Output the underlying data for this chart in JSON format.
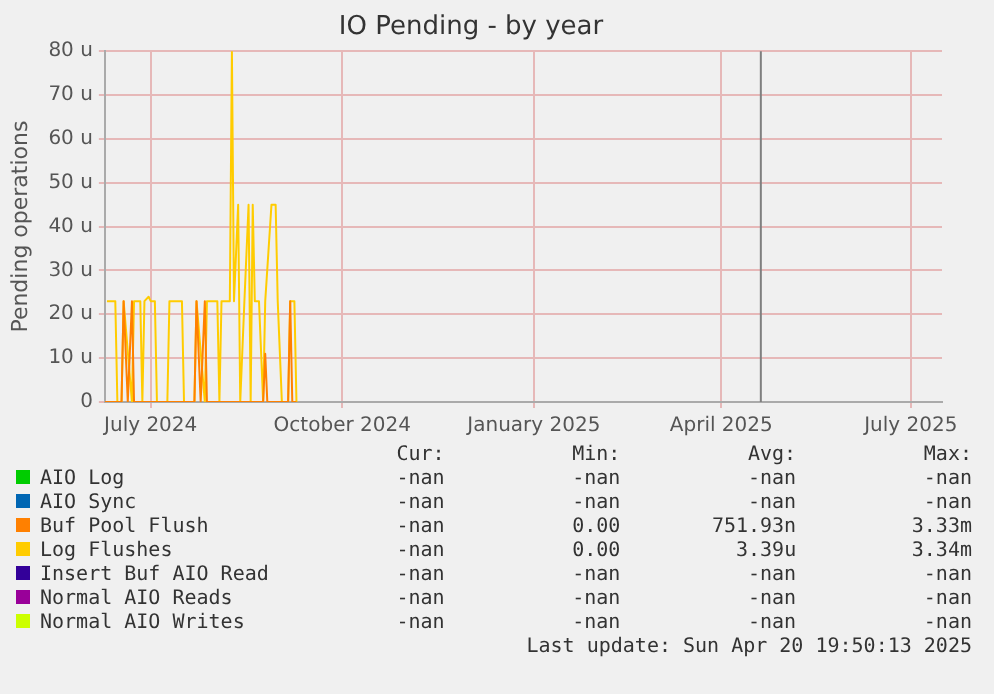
{
  "chart_data": {
    "type": "line",
    "title": "IO Pending - by year",
    "ylabel": "Pending operations",
    "xlim": [
      "2024-06-09",
      "2025-07-16"
    ],
    "xticks": [
      {
        "value": "2024-07-01",
        "label": "July 2024"
      },
      {
        "value": "2024-10-01",
        "label": "October 2024"
      },
      {
        "value": "2025-01-01",
        "label": "January 2025"
      },
      {
        "value": "2025-04-01",
        "label": "April 2025"
      },
      {
        "value": "2025-07-01",
        "label": "July 2025"
      }
    ],
    "ylim": [
      0,
      80
    ],
    "yticks": [
      {
        "value": 0,
        "label": "0"
      },
      {
        "value": 10,
        "label": "10 u"
      },
      {
        "value": 20,
        "label": "20 u"
      },
      {
        "value": 30,
        "label": "30 u"
      },
      {
        "value": 40,
        "label": "40 u"
      },
      {
        "value": 50,
        "label": "50 u"
      },
      {
        "value": 60,
        "label": "60 u"
      },
      {
        "value": 70,
        "label": "70 u"
      },
      {
        "value": 80,
        "label": "80 u"
      }
    ],
    "grid": true,
    "legend": "bottom",
    "marker": "none",
    "line_style": "solid",
    "ref_lines": [
      {
        "axis": "x",
        "value": "2025-04-20",
        "color": "#7f7f7f"
      }
    ],
    "series": [
      {
        "name": "AIO Log",
        "color": "#00cc00"
      },
      {
        "name": "AIO Sync",
        "color": "#0066b3"
      },
      {
        "name": "Buf Pool Flush",
        "color": "#ff8000",
        "x": [
          "2024-06-09",
          "2024-06-17",
          "2024-06-18",
          "2024-06-20",
          "2024-06-22",
          "2024-06-23",
          "2024-07-22",
          "2024-07-23",
          "2024-07-25",
          "2024-07-27",
          "2024-07-28",
          "2024-08-24",
          "2024-08-25",
          "2024-08-26",
          "2024-09-05",
          "2024-09-06",
          "2024-09-07",
          "2024-09-09"
        ],
        "values": [
          0,
          0,
          23,
          0,
          23,
          0,
          0,
          23,
          0,
          23,
          0,
          0,
          11,
          0,
          0,
          23,
          0,
          0
        ]
      },
      {
        "name": "Log Flushes",
        "color": "#ffcc00",
        "x": [
          "2024-06-10",
          "2024-06-14",
          "2024-06-15",
          "2024-06-17",
          "2024-06-18",
          "2024-06-22",
          "2024-06-23",
          "2024-06-26",
          "2024-06-27",
          "2024-06-28",
          "2024-06-30",
          "2024-07-01",
          "2024-07-03",
          "2024-07-04",
          "2024-07-09",
          "2024-07-10",
          "2024-07-16",
          "2024-07-17",
          "2024-07-22",
          "2024-07-23",
          "2024-07-27",
          "2024-07-28",
          "2024-08-02",
          "2024-08-03",
          "2024-08-04",
          "2024-08-08",
          "2024-08-09",
          "2024-08-10",
          "2024-08-12",
          "2024-08-13",
          "2024-08-15",
          "2024-08-17",
          "2024-08-18",
          "2024-08-19",
          "2024-08-20",
          "2024-08-22",
          "2024-08-24",
          "2024-08-25",
          "2024-08-28",
          "2024-08-30",
          "2024-08-31",
          "2024-09-02",
          "2024-09-05",
          "2024-09-06",
          "2024-09-08",
          "2024-09-09"
        ],
        "values": [
          23,
          23,
          0,
          0,
          23,
          0,
          23,
          23,
          0,
          23,
          24,
          23,
          23,
          0,
          0,
          23,
          23,
          0,
          0,
          23,
          0,
          23,
          23,
          0,
          23,
          23,
          80,
          23,
          45,
          0,
          23,
          45,
          0,
          45,
          23,
          23,
          0,
          23,
          45,
          45,
          23,
          0,
          0,
          23,
          23,
          0
        ]
      },
      {
        "name": "Insert Buf AIO Read",
        "color": "#330099"
      },
      {
        "name": "Normal AIO Reads",
        "color": "#990099"
      },
      {
        "name": "Normal AIO Writes",
        "color": "#ccff00"
      }
    ],
    "annotations": [
      "Cur:",
      "Min:",
      "Avg:",
      "Max:",
      "-nan",
      "-nan",
      "-nan",
      "-nan",
      "-nan",
      "-nan",
      "-nan",
      "-nan",
      "-nan",
      "0.00",
      "751.93n",
      "3.33m",
      "-nan",
      "0.00",
      "3.39u",
      "3.34m",
      "-nan",
      "-nan",
      "-nan",
      "-nan",
      "-nan",
      "-nan",
      "-nan",
      "-nan",
      "-nan",
      "-nan",
      "-nan",
      "-nan",
      "Last update: Sun Apr 20 19:50:13 2025"
    ]
  }
}
